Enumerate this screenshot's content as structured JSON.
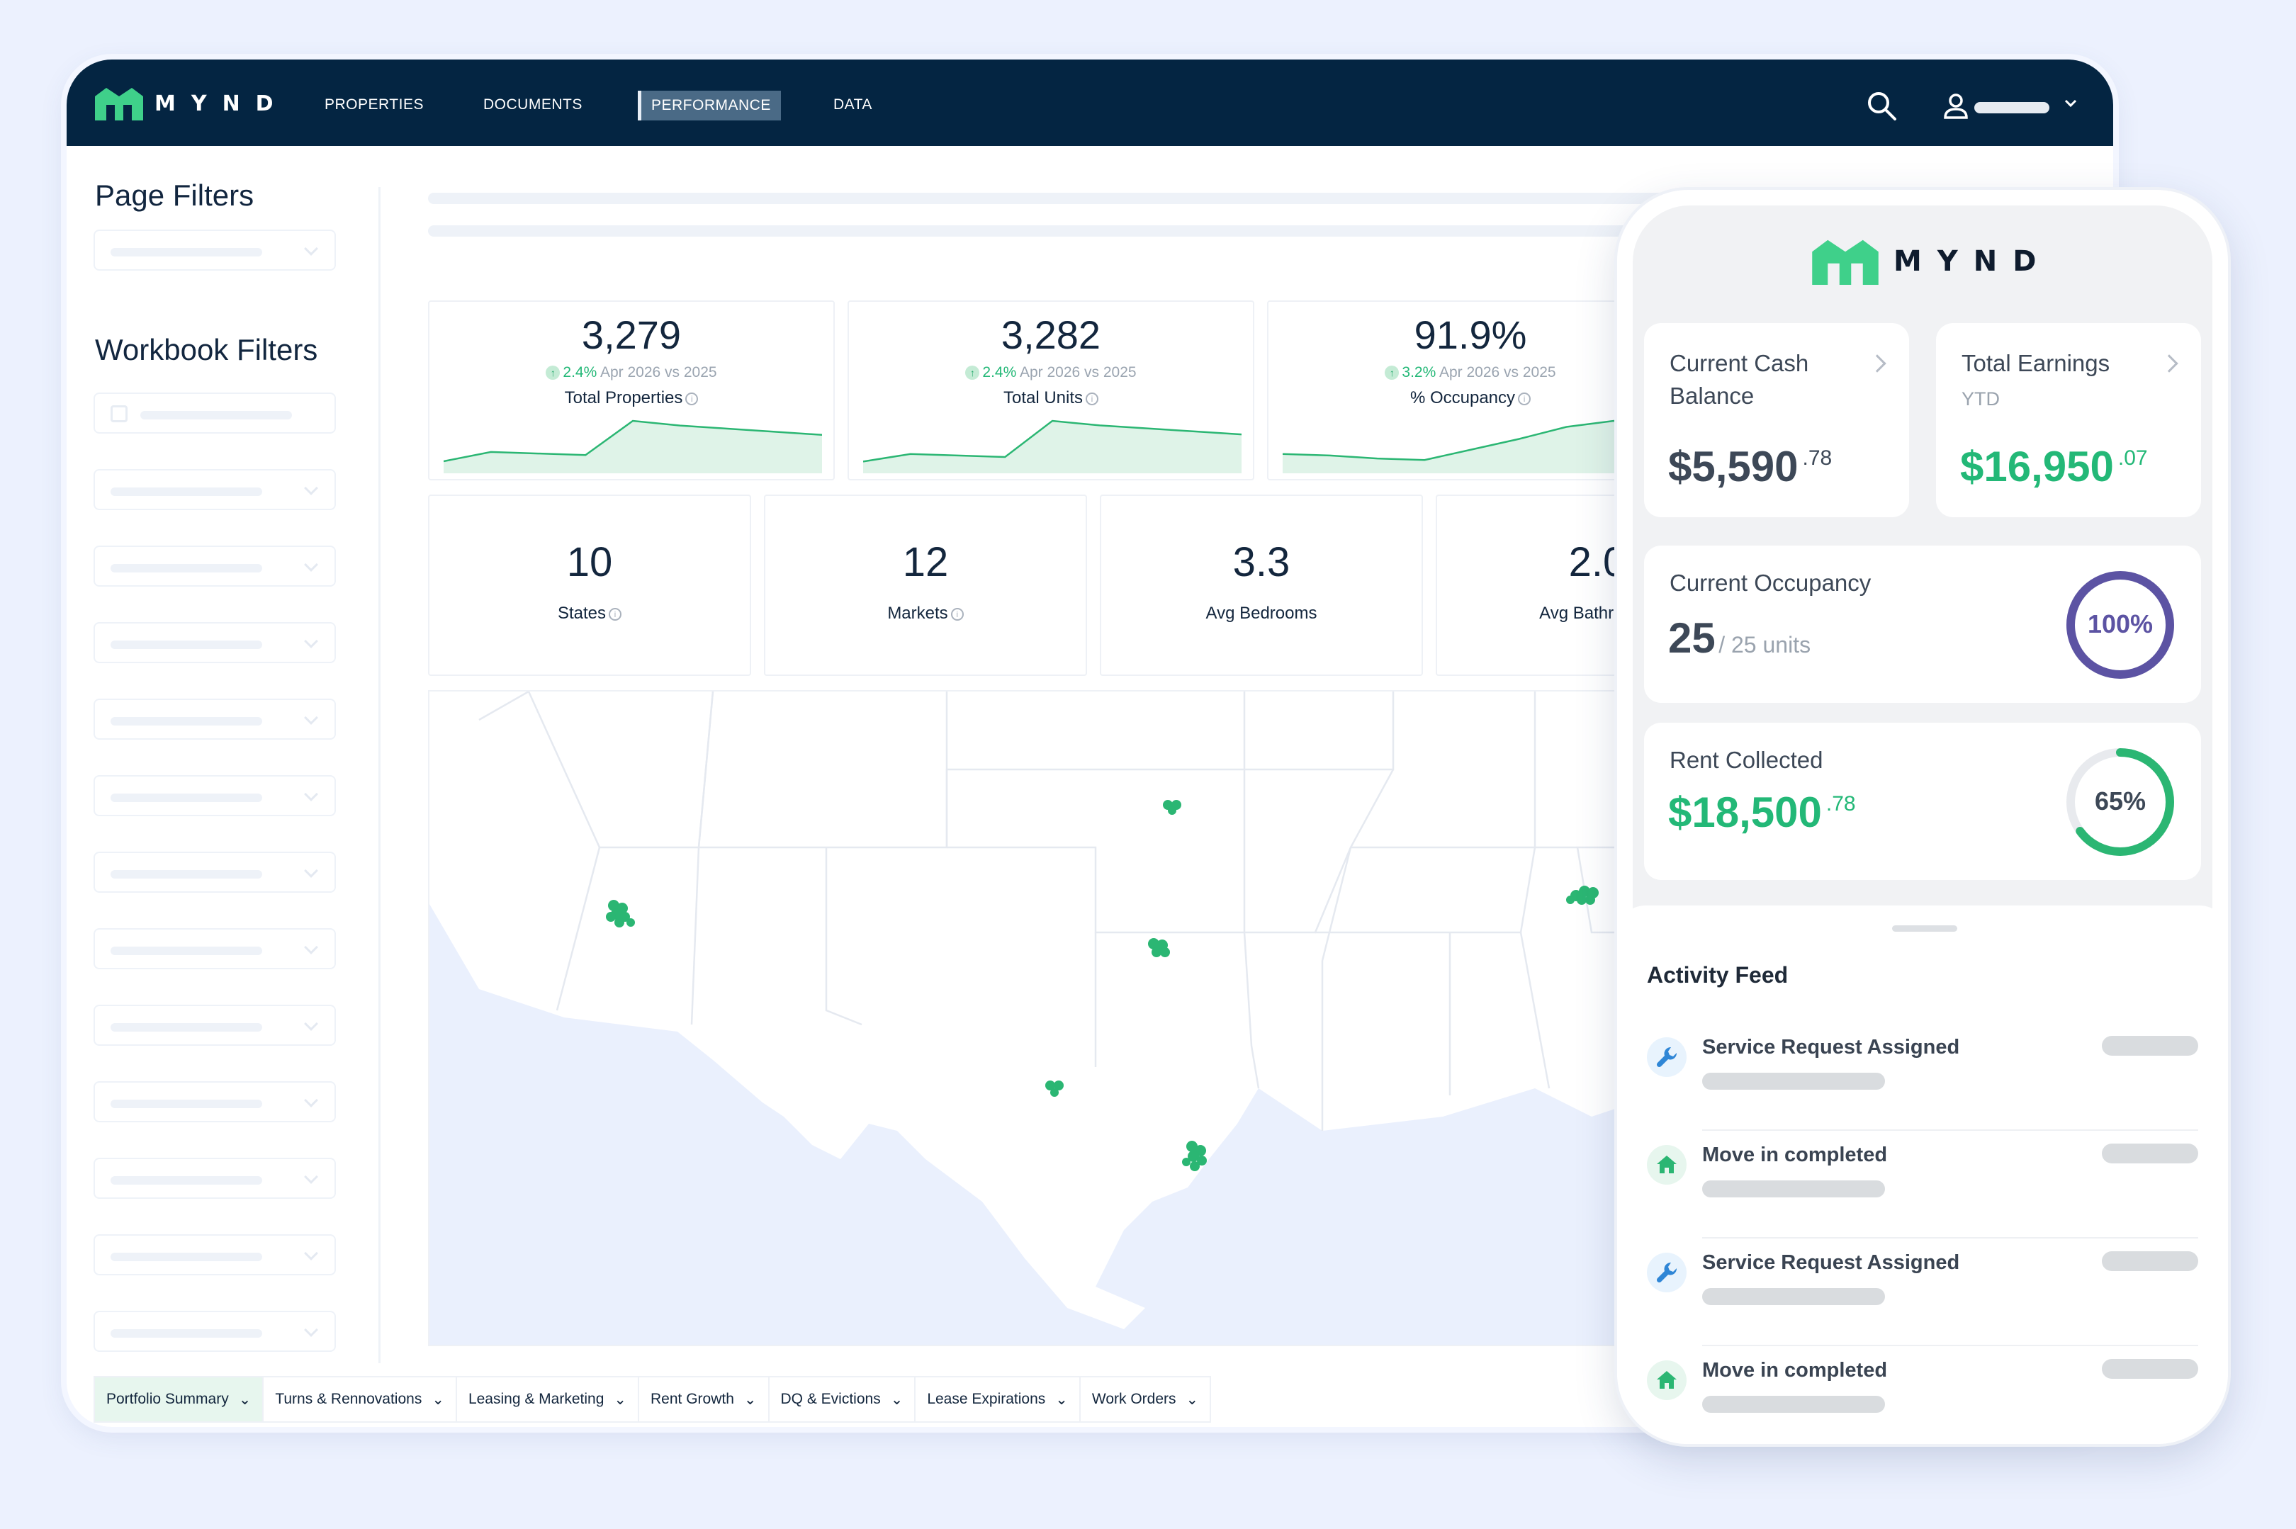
{
  "desktop": {
    "brand": "MYND",
    "nav": [
      "PROPERTIES",
      "DOCUMENTS",
      "PERFORMANCE",
      "DATA"
    ],
    "active_nav": "PERFORMANCE",
    "sidebar": {
      "page_filters_title": "Page Filters",
      "workbook_filters_title": "Workbook Filters"
    },
    "kpis": [
      {
        "value": "3,279",
        "change": "2.4%",
        "period": "Apr 2026 vs 2025",
        "label": "Total Properties",
        "sparkline": [
          10,
          22,
          20,
          18,
          62,
          56,
          52,
          48,
          44
        ]
      },
      {
        "value": "3,282",
        "change": "2.4%",
        "period": "Apr 2026 vs 2025",
        "label": "Total Units",
        "sparkline": [
          10,
          20,
          18,
          16,
          64,
          58,
          54,
          50,
          46
        ]
      },
      {
        "value": "91.9%",
        "change": "3.2%",
        "period": "Apr 2026 vs 2025",
        "label": "% Occupancy",
        "sparkline": [
          20,
          18,
          14,
          12,
          26,
          40,
          56,
          64,
          60
        ]
      }
    ],
    "stats": [
      {
        "value": "10",
        "label": "States"
      },
      {
        "value": "12",
        "label": "Markets"
      },
      {
        "value": "3.3",
        "label": "Avg Bedrooms"
      },
      {
        "value": "2.0",
        "label": "Avg Bathrooms"
      }
    ],
    "tabs": [
      "Portfolio Summary",
      "Turns & Rennovations",
      "Leasing & Marketing",
      "Rent Growth",
      "DQ & Evictions",
      "Lease Expirations",
      "Work Orders"
    ]
  },
  "mobile": {
    "brand": "MYND",
    "cash": {
      "title": "Current Cash Balance",
      "amount": "$5,590",
      "cents": ".78"
    },
    "earnings": {
      "title": "Total Earnings",
      "subtitle": "YTD",
      "amount": "$16,950",
      "cents": ".07"
    },
    "occupancy": {
      "title": "Current Occupancy",
      "count": "25",
      "of": "/ 25 units",
      "percent": "100%",
      "fraction": 1.0
    },
    "rent": {
      "title": "Rent Collected",
      "amount": "$18,500",
      "cents": ".78",
      "percent": "65%",
      "fraction": 0.65
    },
    "feed": {
      "title": "Activity Feed",
      "items": [
        {
          "text": "Service Request Assigned",
          "icon": "wrench-icon"
        },
        {
          "text": "Move in completed",
          "icon": "home-icon"
        },
        {
          "text": "Service Request Assigned",
          "icon": "wrench-icon"
        },
        {
          "text": "Move in completed",
          "icon": "home-icon"
        }
      ]
    }
  },
  "colors": {
    "navy": "#042542",
    "green": "#23b877",
    "purple": "#5c53a3",
    "ring_track": "#e8eaee"
  }
}
